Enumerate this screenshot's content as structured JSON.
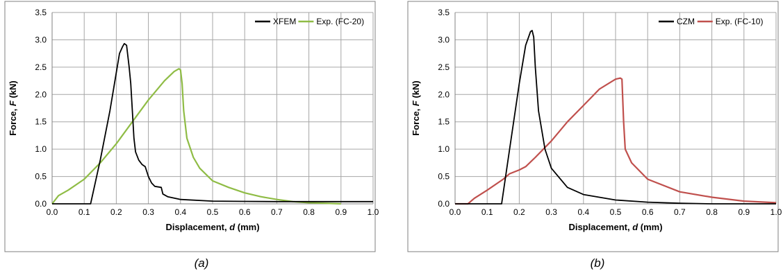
{
  "chart_data": [
    {
      "type": "line",
      "xlabel": "Displacement, d (mm)",
      "xlabel_parts": [
        "Displacement, ",
        "d",
        " (mm)"
      ],
      "ylabel": "Force, F (kN)",
      "ylabel_parts": [
        "Force, ",
        "F",
        " (kN)"
      ],
      "xlim": [
        0,
        1
      ],
      "ylim": [
        0,
        3.5
      ],
      "xticks": [
        "0.0",
        "0.1",
        "0.2",
        "0.3",
        "0.4",
        "0.5",
        "0.6",
        "0.7",
        "0.8",
        "0.9",
        "1.0"
      ],
      "yticks": [
        "0.0",
        "0.5",
        "1.0",
        "1.5",
        "2.0",
        "2.5",
        "3.0",
        "3.5"
      ],
      "grid": true,
      "legend": "top-right",
      "series": [
        {
          "name": "XFEM",
          "color": "#000000",
          "x": [
            0.0,
            0.12,
            0.15,
            0.18,
            0.2,
            0.21,
            0.22,
            0.225,
            0.232,
            0.24,
            0.245,
            0.25,
            0.255,
            0.26,
            0.27,
            0.28,
            0.29,
            0.3,
            0.31,
            0.32,
            0.34,
            0.345,
            0.36,
            0.4,
            0.5,
            0.6,
            0.7,
            0.8,
            0.9,
            1.0
          ],
          "y": [
            0.0,
            0.0,
            0.8,
            1.7,
            2.4,
            2.75,
            2.88,
            2.93,
            2.9,
            2.5,
            2.2,
            1.7,
            1.2,
            0.95,
            0.8,
            0.72,
            0.68,
            0.5,
            0.38,
            0.32,
            0.3,
            0.18,
            0.13,
            0.08,
            0.05,
            0.045,
            0.04,
            0.04,
            0.04,
            0.04
          ]
        },
        {
          "name": "Exp. (FC-20)",
          "color": "#8fbc45",
          "x": [
            0.0,
            0.02,
            0.05,
            0.1,
            0.15,
            0.2,
            0.25,
            0.3,
            0.35,
            0.38,
            0.395,
            0.4,
            0.405,
            0.41,
            0.42,
            0.44,
            0.46,
            0.5,
            0.55,
            0.6,
            0.65,
            0.7,
            0.75,
            0.8,
            0.85,
            0.9
          ],
          "y": [
            0.0,
            0.15,
            0.25,
            0.45,
            0.75,
            1.1,
            1.5,
            1.9,
            2.25,
            2.42,
            2.47,
            2.45,
            2.2,
            1.7,
            1.2,
            0.85,
            0.65,
            0.42,
            0.3,
            0.2,
            0.13,
            0.08,
            0.04,
            0.02,
            0.01,
            0.0
          ]
        }
      ]
    },
    {
      "type": "line",
      "xlabel": "Displacement, d (mm)",
      "xlabel_parts": [
        "Displacement, ",
        "d",
        " (mm)"
      ],
      "ylabel": "Force, F (kN)",
      "ylabel_parts": [
        "Force, ",
        "F",
        " (kN)"
      ],
      "xlim": [
        0,
        1
      ],
      "ylim": [
        0,
        3.5
      ],
      "xticks": [
        "0.0",
        "0.1",
        "0.2",
        "0.3",
        "0.4",
        "0.5",
        "0.6",
        "0.7",
        "0.8",
        "0.9",
        "1.0"
      ],
      "yticks": [
        "0.0",
        "0.5",
        "1.0",
        "1.5",
        "2.0",
        "2.5",
        "3.0",
        "3.5"
      ],
      "grid": true,
      "legend": "top-right",
      "series": [
        {
          "name": "CZM",
          "color": "#000000",
          "x": [
            0.0,
            0.145,
            0.17,
            0.2,
            0.22,
            0.235,
            0.24,
            0.245,
            0.25,
            0.26,
            0.28,
            0.3,
            0.35,
            0.4,
            0.5,
            0.6,
            0.7,
            0.8,
            0.9,
            1.0
          ],
          "y": [
            0.0,
            0.0,
            1.0,
            2.2,
            2.9,
            3.15,
            3.17,
            3.05,
            2.5,
            1.7,
            1.0,
            0.65,
            0.3,
            0.17,
            0.07,
            0.03,
            0.01,
            0.0,
            0.0,
            0.0
          ]
        },
        {
          "name": "Exp. (FC-10)",
          "color": "#c0504d",
          "x": [
            0.0,
            0.04,
            0.06,
            0.1,
            0.15,
            0.17,
            0.2,
            0.22,
            0.25,
            0.3,
            0.35,
            0.4,
            0.45,
            0.5,
            0.515,
            0.52,
            0.525,
            0.53,
            0.55,
            0.6,
            0.7,
            0.8,
            0.9,
            1.0
          ],
          "y": [
            0.0,
            0.0,
            0.1,
            0.25,
            0.45,
            0.55,
            0.62,
            0.68,
            0.85,
            1.15,
            1.5,
            1.8,
            2.1,
            2.28,
            2.3,
            2.28,
            1.5,
            1.0,
            0.75,
            0.45,
            0.22,
            0.12,
            0.05,
            0.02
          ]
        }
      ]
    }
  ],
  "captions": [
    "(a)",
    "(b)"
  ]
}
